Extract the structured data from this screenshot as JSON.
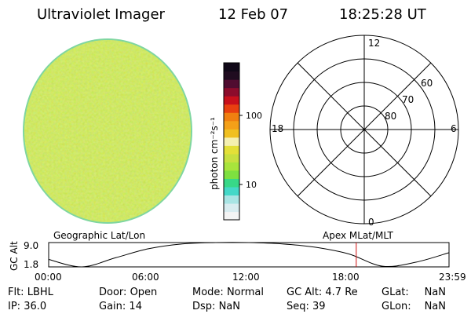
{
  "header": {
    "instrument": "Ultraviolet Imager",
    "date": "12 Feb 07",
    "time": "18:25:28 UT"
  },
  "colorbar": {
    "unit_label": "photon cm⁻²s⁻¹",
    "tick_labels": [
      "100",
      "10"
    ],
    "colors": [
      "#f4f4f4",
      "#d8ecf0",
      "#a8e4e4",
      "#44d8c8",
      "#38d888",
      "#7ee040",
      "#a8e43c",
      "#c8e040",
      "#e4e038",
      "#f4f0b0",
      "#f0c020",
      "#f4a018",
      "#f08010",
      "#e84010",
      "#c8101c",
      "#8c0c2c",
      "#500c30",
      "#200c20",
      "#100818"
    ]
  },
  "polar_plot": {
    "mlt_labels": {
      "top": "12",
      "left": "18",
      "right": "6",
      "bottom": "0"
    },
    "lat_labels": [
      "60",
      "70",
      "80"
    ]
  },
  "timeline": {
    "ylabel": "GC Alt",
    "y_ticks": [
      "9.0",
      "1.8"
    ],
    "left_label": "Geographic Lat/Lon",
    "right_label": "Apex MLat/MLT",
    "x_ticks": [
      "00:00",
      "06:00",
      "12:00",
      "18:00",
      "23:59"
    ],
    "marker_color": "#d01010"
  },
  "info": {
    "row1": [
      {
        "label": "Flt:",
        "value": "LBHL"
      },
      {
        "label": "Door:",
        "value": "Open"
      },
      {
        "label": "Mode:",
        "value": "Normal"
      },
      {
        "label": "GC Alt:",
        "value": "4.7 Re"
      },
      {
        "label": "GLat:",
        "value": "NaN"
      }
    ],
    "row2": [
      {
        "label": "IP:",
        "value": "36.0"
      },
      {
        "label": "Gain:",
        "value": "14"
      },
      {
        "label": "Dsp:",
        "value": "NaN"
      },
      {
        "label": "Seq:",
        "value": "39"
      },
      {
        "label": "GLon:",
        "value": "NaN"
      }
    ]
  },
  "chart_data": {
    "type": "line",
    "x": [
      "00:00",
      "02:00",
      "04:00",
      "06:00",
      "08:00",
      "10:00",
      "12:00",
      "14:00",
      "16:00",
      "18:00",
      "20:00",
      "22:00",
      "23:59"
    ],
    "values": [
      4.0,
      1.8,
      4.5,
      7.2,
      8.6,
      9.0,
      9.0,
      8.6,
      7.6,
      5.6,
      2.0,
      3.2,
      6.0
    ],
    "ylabel": "GC Alt",
    "y_ticks": [
      9.0,
      1.8
    ],
    "current_time": "18:25:28"
  }
}
